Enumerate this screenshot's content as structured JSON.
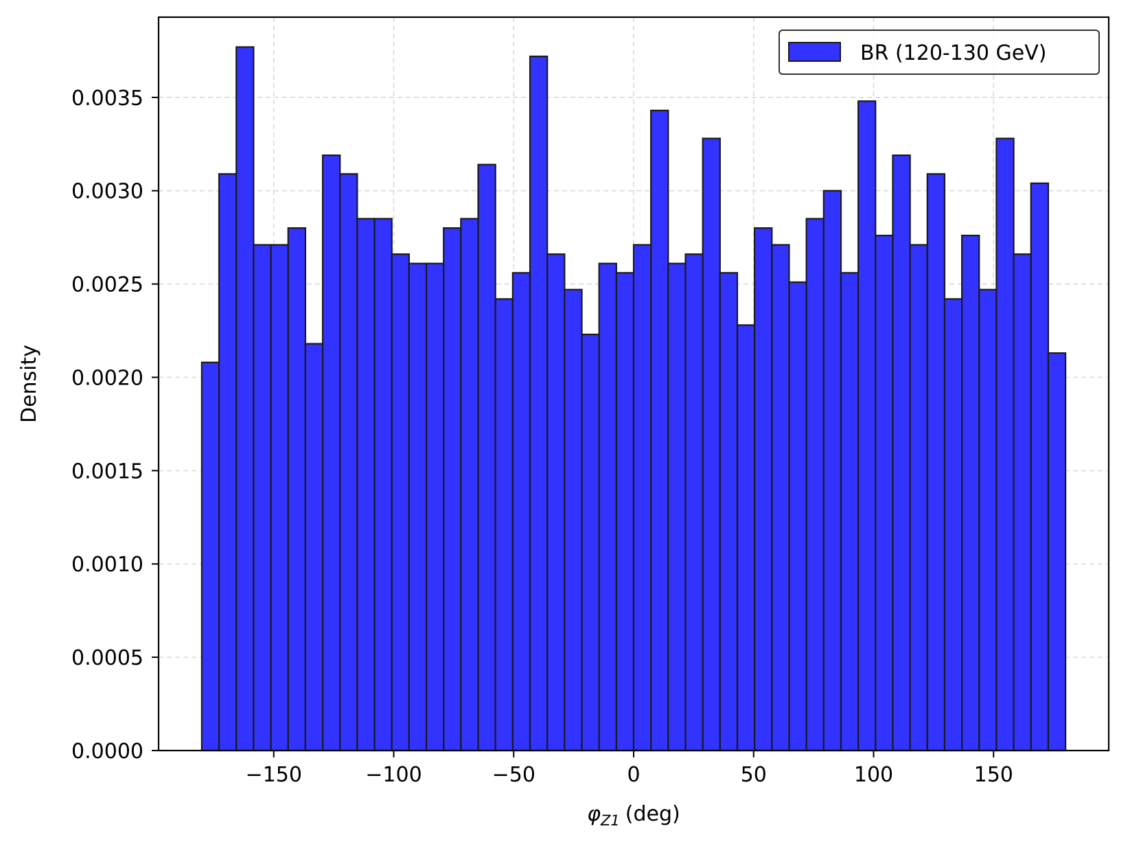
{
  "chart_data": {
    "type": "bar",
    "subtype": "histogram",
    "xlabel_symbol": "φ",
    "xlabel_subscript": "Z1",
    "xlabel_unit": "(deg)",
    "ylabel": "Density",
    "xlim": [
      -198,
      198
    ],
    "ylim": [
      0,
      0.00393
    ],
    "xticks": [
      -150,
      -100,
      -50,
      0,
      50,
      100,
      150
    ],
    "xtick_labels": [
      "−150",
      "−100",
      "−50",
      "0",
      "50",
      "100",
      "150"
    ],
    "yticks": [
      0,
      0.0005,
      0.001,
      0.0015,
      0.002,
      0.0025,
      0.003,
      0.0035
    ],
    "ytick_labels": [
      "0.0000",
      "0.0005",
      "0.0010",
      "0.0015",
      "0.0020",
      "0.0025",
      "0.0030",
      "0.0035"
    ],
    "grid": true,
    "legend_position": "top-right",
    "bar_color": "#3333ff",
    "edge_color": "#1a1a1a",
    "series": [
      {
        "name": "BR (120-130 GeV)",
        "bin_start": -180,
        "bin_width": 7.2,
        "values": [
          0.00208,
          0.00309,
          0.00377,
          0.00271,
          0.00271,
          0.0028,
          0.00218,
          0.00319,
          0.00309,
          0.00285,
          0.00285,
          0.00266,
          0.00261,
          0.00261,
          0.0028,
          0.00285,
          0.00314,
          0.00242,
          0.00256,
          0.00372,
          0.00266,
          0.00247,
          0.00223,
          0.00261,
          0.00256,
          0.00271,
          0.00343,
          0.00261,
          0.00266,
          0.00328,
          0.00256,
          0.00228,
          0.0028,
          0.00271,
          0.00251,
          0.00285,
          0.003,
          0.00256,
          0.00348,
          0.00276,
          0.00319,
          0.00271,
          0.00309,
          0.00242,
          0.00276,
          0.00247,
          0.00328,
          0.00266,
          0.00304,
          0.00213
        ]
      }
    ]
  }
}
